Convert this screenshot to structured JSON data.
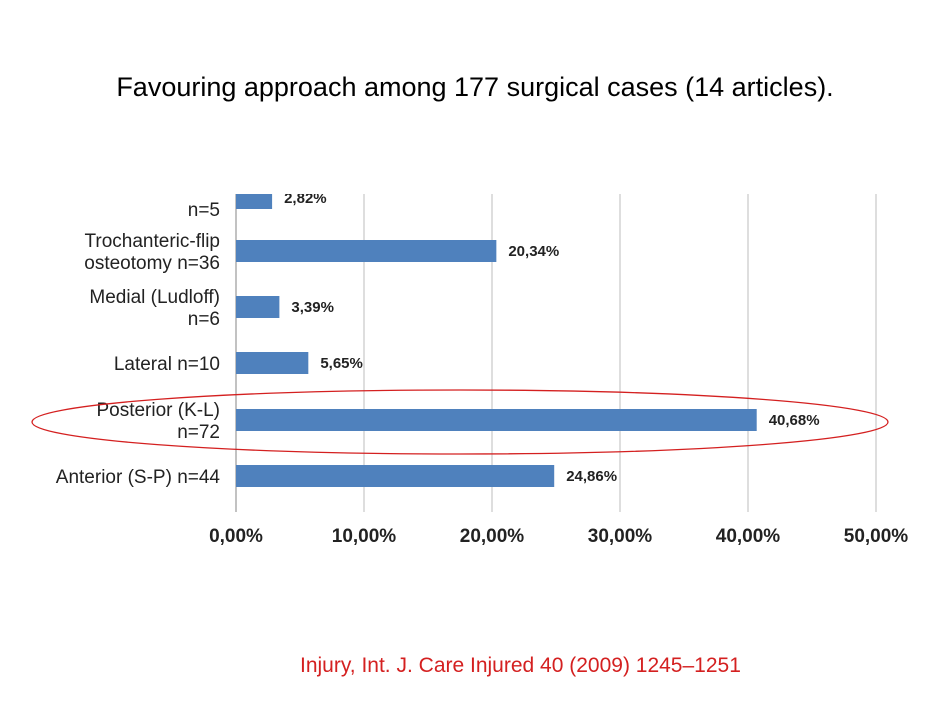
{
  "slide": {
    "title": "Favouring approach among  177 surgical cases (14 articles).",
    "citation": "Injury, Int. J. Care Injured 40 (2009) 1245–1251"
  },
  "chart_data": {
    "type": "bar",
    "orientation": "horizontal",
    "categories": [
      [
        "n=5"
      ],
      [
        "Trochanteric-flip",
        "osteotomy n=36"
      ],
      [
        "Medial  (Ludloff)",
        "n=6"
      ],
      [
        "Lateral n=10"
      ],
      [
        "Posterior (K-L)",
        "n=72"
      ],
      [
        "Anterior (S-P) n=44"
      ]
    ],
    "values": [
      2.82,
      20.34,
      3.39,
      5.65,
      40.68,
      24.86
    ],
    "data_labels": [
      "2,82%",
      "20,34%",
      "3,39%",
      "5,65%",
      "40,68%",
      "24,86%"
    ],
    "xlim": [
      0,
      50
    ],
    "xticks": [
      0,
      10,
      20,
      30,
      40,
      50
    ],
    "xtick_labels": [
      "0,00%",
      "10,00%",
      "20,00%",
      "30,00%",
      "40,00%",
      "50,00%"
    ],
    "grid": "vertical",
    "bar_color": "#4f81bd",
    "highlight": {
      "category_index": 4,
      "shape": "ellipse",
      "color": "#d42020"
    }
  }
}
